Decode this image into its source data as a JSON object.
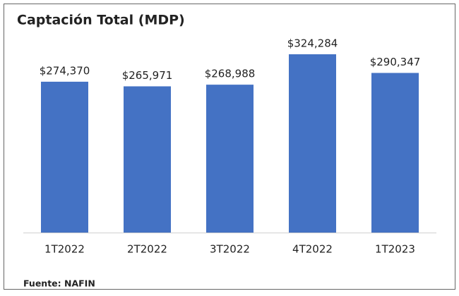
{
  "chart_data": {
    "type": "bar",
    "title": "Captación Total (MDP)",
    "categories": [
      "1T2022",
      "2T2022",
      "3T2022",
      "4T2022",
      "1T2023"
    ],
    "values": [
      274370,
      265971,
      268988,
      324284,
      290347
    ],
    "value_labels": [
      "$274,370",
      "$265,971",
      "$268,988",
      "$324,284",
      "$290,347"
    ],
    "color": "#4472c4",
    "source": "Fuente: NAFIN"
  }
}
